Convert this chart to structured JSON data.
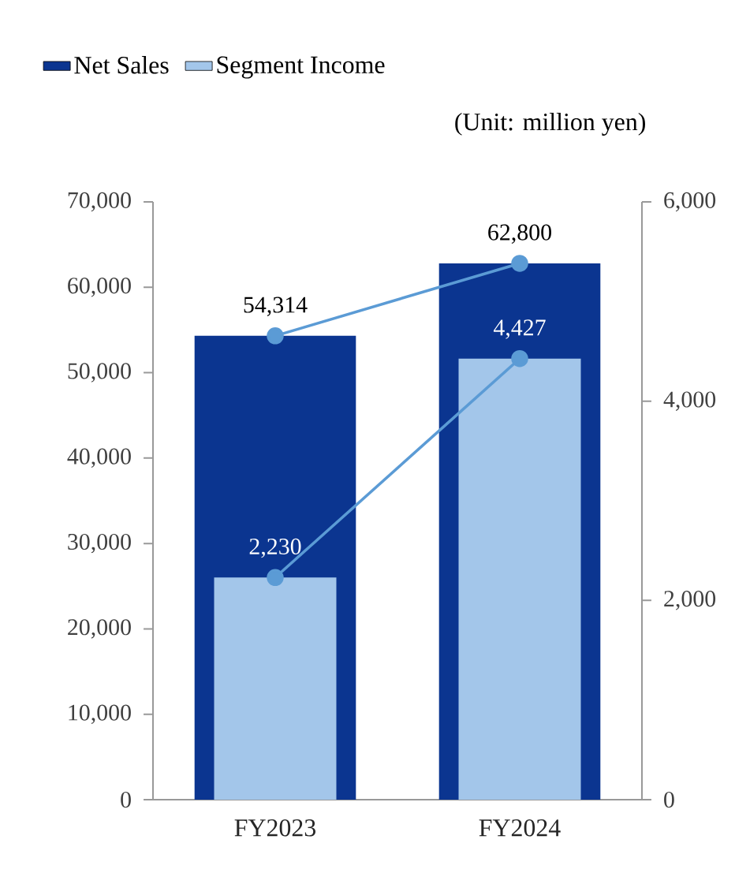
{
  "chart_data": {
    "type": "bar",
    "categories": [
      "FY2023",
      "FY2024"
    ],
    "series": [
      {
        "name": "Net Sales",
        "color": "#0b3590",
        "values": [
          54314,
          62800
        ],
        "value_labels": [
          "54,314",
          "62,800"
        ]
      },
      {
        "name": "Segment Income",
        "color": "#a3c6ea",
        "values": [
          2230,
          4427
        ],
        "axis": "y2",
        "value_labels": [
          "2,230",
          "4,427"
        ]
      },
      {
        "type": "line",
        "color": "#5b9bd5",
        "values": [
          54314,
          62800
        ],
        "marker": "circle"
      },
      {
        "type": "line",
        "color": "#5b9bd5",
        "values": [
          2230,
          4427
        ],
        "axis": "y2",
        "marker": "circle"
      }
    ],
    "ylim": [
      0,
      70000
    ],
    "yticks": [
      0,
      {
        "value": 10000,
        "label": "10,000"
      },
      {
        "value": 20000,
        "label": "20,000"
      },
      {
        "value": 30000,
        "label": "30,000"
      },
      {
        "value": 40000,
        "label": "40,000"
      },
      {
        "value": 50000,
        "label": "50,000"
      },
      {
        "value": 60000,
        "label": "60,000"
      },
      {
        "value": 70000,
        "label": "70,000"
      }
    ],
    "y2lim": [
      0,
      6000
    ],
    "y2ticks": [
      0,
      {
        "value": 2000,
        "label": "2,000"
      },
      {
        "value": 4000,
        "label": "4,000"
      },
      {
        "value": 6000,
        "label": "6,000"
      }
    ],
    "annotations": [
      "(Unit: million yen)"
    ],
    "legend": "top left",
    "grid": false
  }
}
